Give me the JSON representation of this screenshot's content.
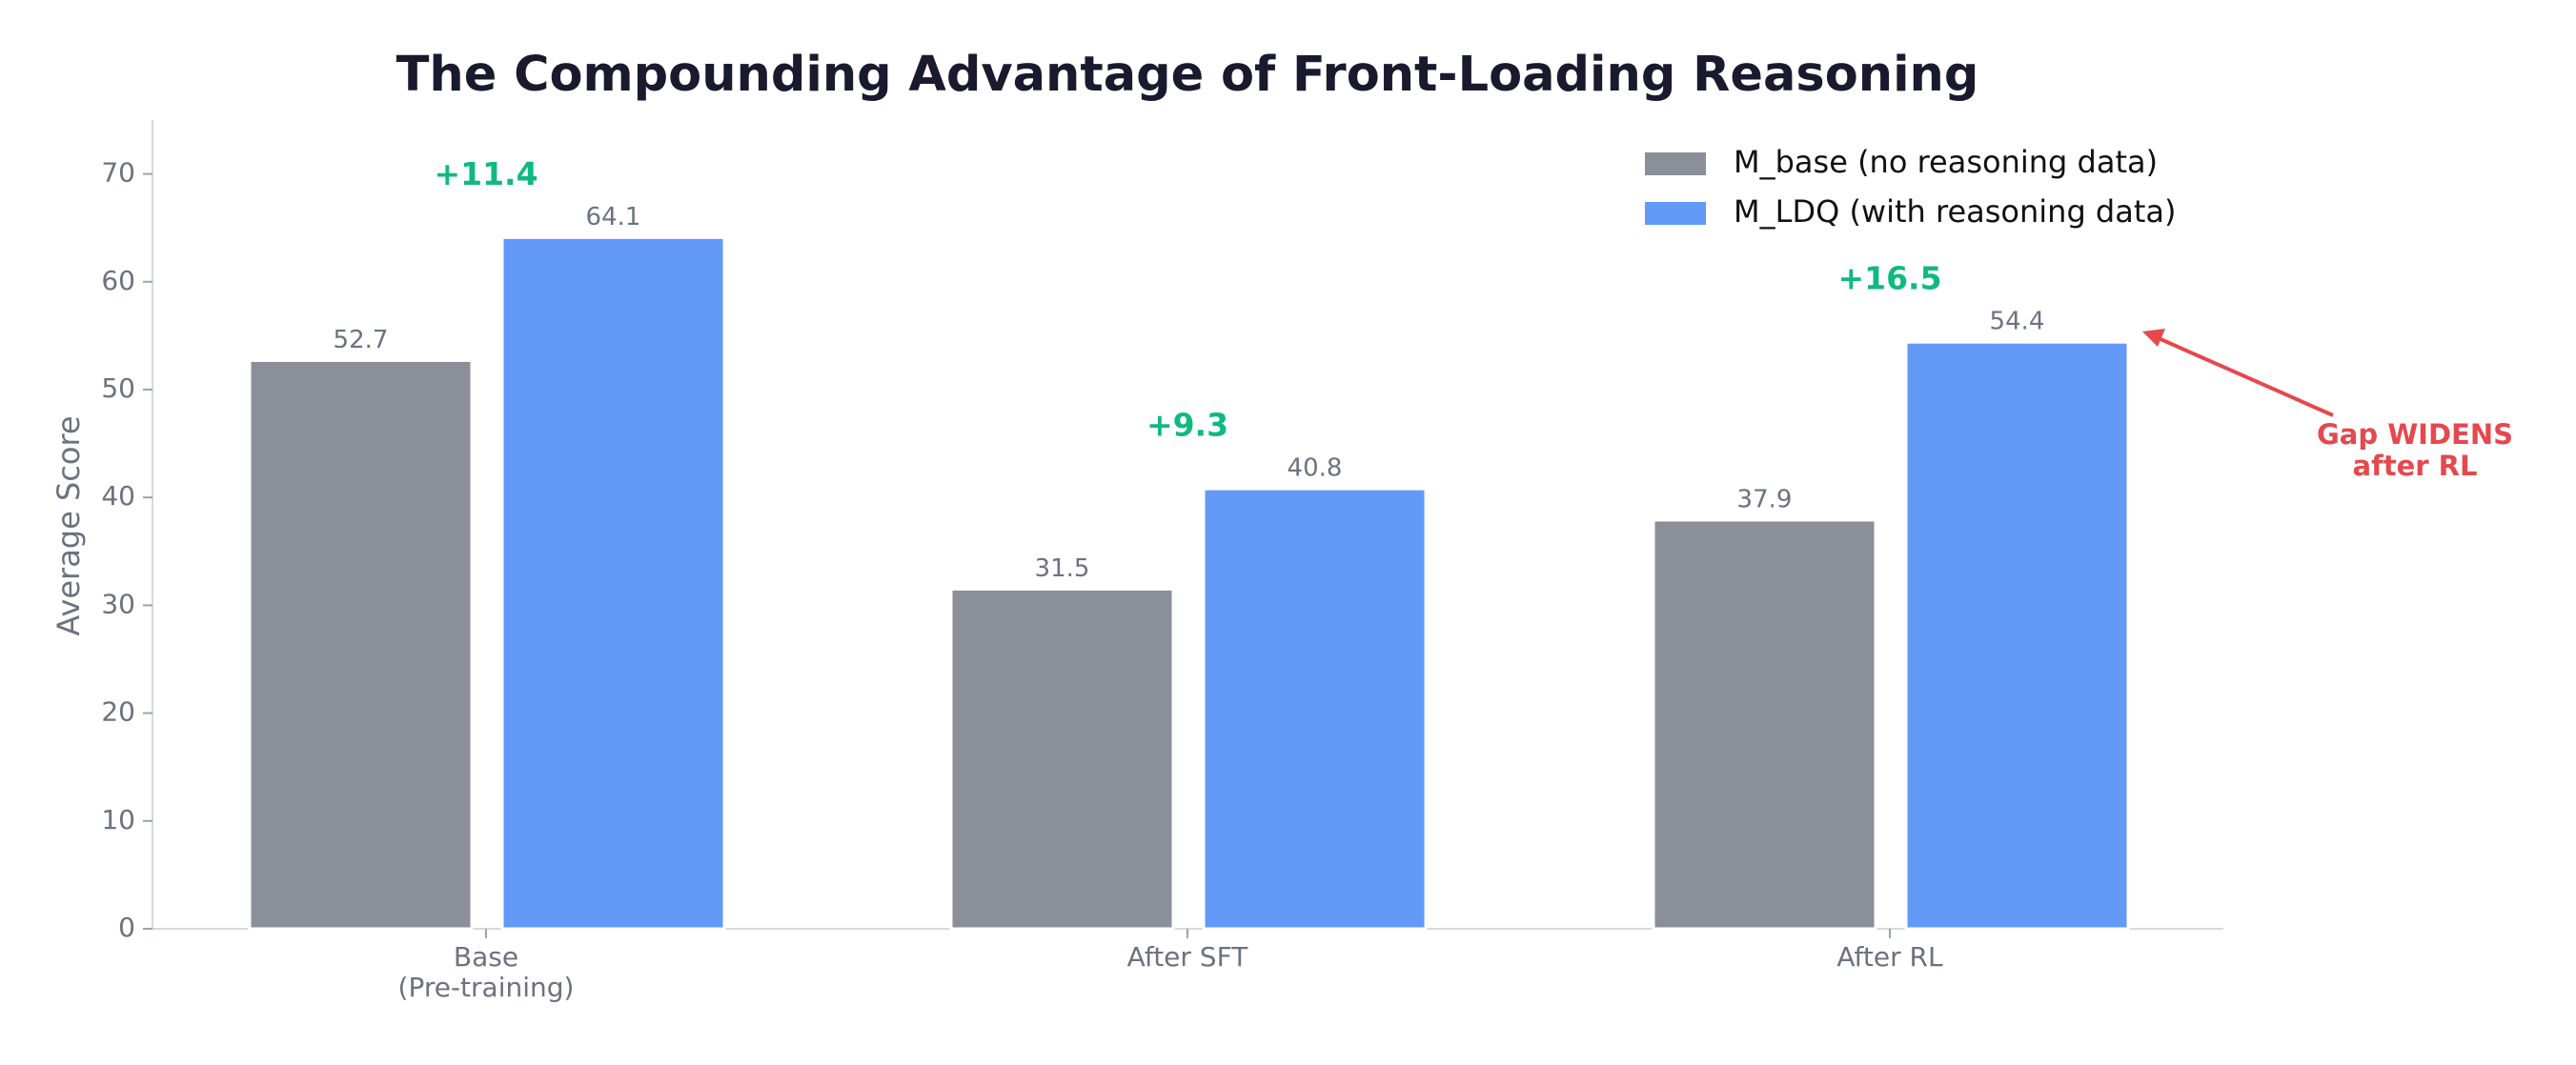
{
  "chart_data": {
    "type": "bar",
    "title": "The Compounding Advantage of Front-Loading Reasoning",
    "y_label": "Average Score",
    "categories": [
      "Base\n(Pre-training)",
      "After SFT",
      "After RL"
    ],
    "series": [
      {
        "name": "M_base (no reasoning data)",
        "color": "#8b8f99",
        "values": [
          52.7,
          31.5,
          37.9
        ]
      },
      {
        "name": "M_LDQ (with reasoning data)",
        "color": "#6399f7",
        "values": [
          64.1,
          40.8,
          54.4
        ]
      }
    ],
    "differences": {
      "color": "#10b981",
      "values": [
        11.4,
        9.3,
        16.5
      ],
      "value_labels": [
        "+11.4",
        "+9.3",
        "+16.5"
      ]
    },
    "annotation": {
      "text": "Gap WIDENS\nafter RL",
      "color": "#e5484d"
    },
    "ylim": [
      0,
      75
    ],
    "yticks": [
      0,
      10,
      20,
      30,
      40,
      50,
      60,
      70
    ],
    "legend": "upper right",
    "grid": false
  }
}
